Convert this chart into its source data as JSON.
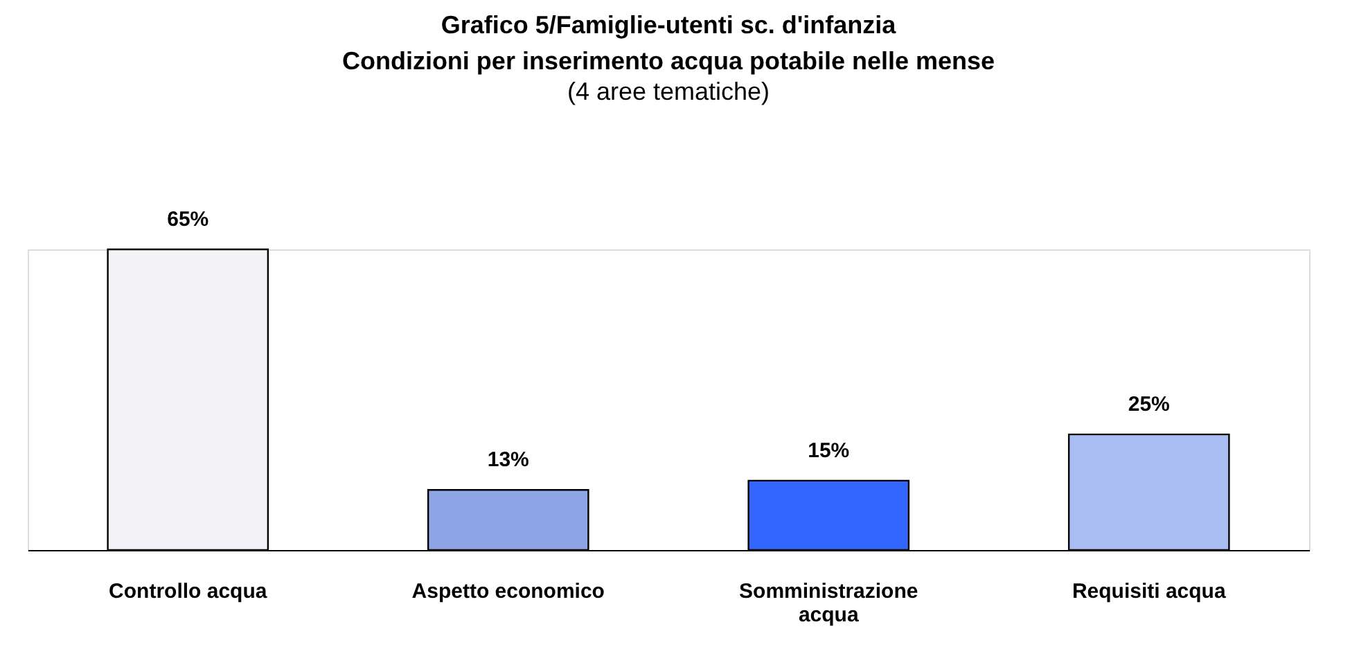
{
  "chart_data": {
    "type": "bar",
    "title": [
      "Grafico 5/Famiglie-utenti sc. d'infanzia",
      "Condizioni per inserimento acqua potabile nelle mense"
    ],
    "subtitle": "(4 aree tematiche)",
    "categories": [
      "Controllo acqua",
      "Aspetto economico",
      "Somministrazione acqua",
      "Requisiti acqua"
    ],
    "values": [
      65,
      13,
      15,
      25
    ],
    "colors": [
      "#f4f4f8",
      "#8ea6e6",
      "#3366ff",
      "#a9bdf2"
    ],
    "data_labels": true,
    "value_labels": [
      "65%",
      "13%",
      "15%",
      "25%"
    ]
  }
}
